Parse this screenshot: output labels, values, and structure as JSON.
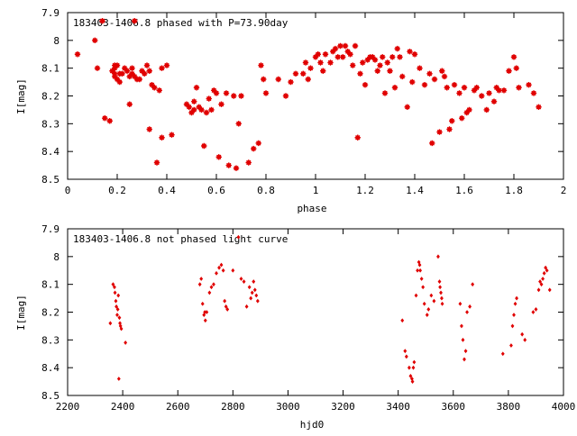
{
  "chart_data": [
    {
      "type": "scatter",
      "title": "183403-1406.8 phased with P=73.90day",
      "xlabel": "phase",
      "ylabel": "I[mag]",
      "xlim": [
        0,
        2
      ],
      "ylim": [
        7.9,
        8.5
      ],
      "y_inverted": true,
      "x_ticks": [
        0,
        0.2,
        0.4,
        0.6,
        0.8,
        1,
        1.2,
        1.4,
        1.6,
        1.8,
        2
      ],
      "x_tick_labels": [
        "0",
        "0.2",
        "0.4",
        "0.6",
        "0.8",
        "1",
        "1.2",
        "1.4",
        "1.6",
        "1.8",
        "2"
      ],
      "y_ticks": [
        7.9,
        8.0,
        8.1,
        8.2,
        8.3,
        8.4,
        8.5
      ],
      "y_tick_labels": [
        "7.9",
        "8",
        "8.1",
        "8.2",
        "8.3",
        "8.4",
        "8.5"
      ],
      "grid": false,
      "marker_color": "#e00000",
      "points": [
        [
          0.04,
          8.05
        ],
        [
          0.11,
          8.0
        ],
        [
          0.12,
          8.1
        ],
        [
          0.14,
          7.93
        ],
        [
          0.15,
          8.28
        ],
        [
          0.17,
          8.29
        ],
        [
          0.18,
          8.11
        ],
        [
          0.19,
          8.09
        ],
        [
          0.19,
          8.1
        ],
        [
          0.19,
          8.12
        ],
        [
          0.19,
          8.13
        ],
        [
          0.2,
          8.14
        ],
        [
          0.2,
          8.09
        ],
        [
          0.21,
          8.12
        ],
        [
          0.21,
          8.15
        ],
        [
          0.22,
          8.12
        ],
        [
          0.23,
          8.1
        ],
        [
          0.24,
          8.11
        ],
        [
          0.25,
          8.13
        ],
        [
          0.25,
          8.23
        ],
        [
          0.26,
          8.1
        ],
        [
          0.26,
          8.12
        ],
        [
          0.27,
          7.93
        ],
        [
          0.27,
          8.13
        ],
        [
          0.28,
          8.14
        ],
        [
          0.29,
          8.14
        ],
        [
          0.3,
          8.11
        ],
        [
          0.31,
          8.12
        ],
        [
          0.32,
          8.09
        ],
        [
          0.33,
          8.11
        ],
        [
          0.33,
          8.32
        ],
        [
          0.34,
          8.16
        ],
        [
          0.35,
          8.17
        ],
        [
          0.36,
          8.44
        ],
        [
          0.37,
          8.18
        ],
        [
          0.38,
          8.35
        ],
        [
          0.38,
          8.1
        ],
        [
          0.4,
          8.09
        ],
        [
          0.42,
          8.34
        ],
        [
          0.48,
          8.23
        ],
        [
          0.49,
          8.24
        ],
        [
          0.5,
          8.26
        ],
        [
          0.51,
          8.22
        ],
        [
          0.51,
          8.25
        ],
        [
          0.52,
          8.17
        ],
        [
          0.53,
          8.24
        ],
        [
          0.54,
          8.25
        ],
        [
          0.55,
          8.38
        ],
        [
          0.56,
          8.26
        ],
        [
          0.57,
          8.21
        ],
        [
          0.58,
          8.25
        ],
        [
          0.59,
          8.18
        ],
        [
          0.6,
          8.19
        ],
        [
          0.61,
          8.42
        ],
        [
          0.62,
          8.23
        ],
        [
          0.64,
          8.19
        ],
        [
          0.65,
          8.45
        ],
        [
          0.67,
          8.2
        ],
        [
          0.68,
          8.46
        ],
        [
          0.69,
          8.3
        ],
        [
          0.7,
          8.2
        ],
        [
          0.73,
          8.44
        ],
        [
          0.75,
          8.39
        ],
        [
          0.77,
          8.37
        ],
        [
          0.78,
          8.09
        ],
        [
          0.79,
          8.14
        ],
        [
          0.8,
          8.19
        ],
        [
          0.85,
          8.14
        ],
        [
          0.88,
          8.2
        ],
        [
          0.9,
          8.15
        ],
        [
          0.92,
          8.12
        ],
        [
          0.95,
          8.12
        ],
        [
          0.96,
          8.08
        ],
        [
          0.97,
          8.14
        ],
        [
          0.98,
          8.1
        ],
        [
          1.0,
          8.06
        ],
        [
          1.01,
          8.05
        ],
        [
          1.02,
          8.08
        ],
        [
          1.03,
          8.11
        ],
        [
          1.04,
          8.05
        ],
        [
          1.06,
          8.08
        ],
        [
          1.07,
          8.04
        ],
        [
          1.08,
          8.03
        ],
        [
          1.09,
          8.06
        ],
        [
          1.1,
          8.02
        ],
        [
          1.11,
          8.06
        ],
        [
          1.12,
          8.02
        ],
        [
          1.13,
          8.04
        ],
        [
          1.14,
          8.05
        ],
        [
          1.15,
          8.09
        ],
        [
          1.16,
          8.02
        ],
        [
          1.17,
          8.35
        ],
        [
          1.18,
          8.12
        ],
        [
          1.19,
          8.08
        ],
        [
          1.2,
          8.16
        ],
        [
          1.21,
          8.07
        ],
        [
          1.22,
          8.06
        ],
        [
          1.23,
          8.06
        ],
        [
          1.24,
          8.07
        ],
        [
          1.25,
          8.11
        ],
        [
          1.26,
          8.09
        ],
        [
          1.27,
          8.06
        ],
        [
          1.28,
          8.19
        ],
        [
          1.29,
          8.08
        ],
        [
          1.3,
          8.11
        ],
        [
          1.31,
          8.06
        ],
        [
          1.32,
          8.17
        ],
        [
          1.33,
          8.03
        ],
        [
          1.34,
          8.06
        ],
        [
          1.35,
          8.13
        ],
        [
          1.37,
          8.24
        ],
        [
          1.38,
          8.04
        ],
        [
          1.39,
          8.15
        ],
        [
          1.4,
          8.05
        ],
        [
          1.42,
          8.1
        ],
        [
          1.44,
          8.16
        ],
        [
          1.46,
          8.12
        ],
        [
          1.47,
          8.37
        ],
        [
          1.48,
          8.14
        ],
        [
          1.5,
          8.33
        ],
        [
          1.51,
          8.11
        ],
        [
          1.52,
          8.13
        ],
        [
          1.53,
          8.17
        ],
        [
          1.54,
          8.32
        ],
        [
          1.55,
          8.29
        ],
        [
          1.56,
          8.16
        ],
        [
          1.58,
          8.19
        ],
        [
          1.59,
          8.28
        ],
        [
          1.6,
          8.17
        ],
        [
          1.61,
          8.26
        ],
        [
          1.62,
          8.25
        ],
        [
          1.64,
          8.18
        ],
        [
          1.65,
          8.17
        ],
        [
          1.67,
          8.2
        ],
        [
          1.69,
          8.25
        ],
        [
          1.7,
          8.19
        ],
        [
          1.72,
          8.22
        ],
        [
          1.73,
          8.17
        ],
        [
          1.74,
          8.18
        ],
        [
          1.76,
          8.18
        ],
        [
          1.78,
          8.11
        ],
        [
          1.8,
          8.06
        ],
        [
          1.81,
          8.1
        ],
        [
          1.82,
          8.17
        ],
        [
          1.86,
          8.16
        ],
        [
          1.88,
          8.19
        ],
        [
          1.9,
          8.24
        ]
      ]
    },
    {
      "type": "scatter",
      "title": "183403-1406.8 not phased light curve",
      "xlabel": "hjd0",
      "ylabel": "I[mag]",
      "xlim": [
        2200,
        4000
      ],
      "ylim": [
        7.9,
        8.5
      ],
      "y_inverted": true,
      "x_ticks": [
        2200,
        2400,
        2600,
        2800,
        3000,
        3200,
        3400,
        3600,
        3800,
        4000
      ],
      "x_tick_labels": [
        "2200",
        "2400",
        "2600",
        "2800",
        "3000",
        "3200",
        "3400",
        "3600",
        "3800",
        "4000"
      ],
      "y_ticks": [
        7.9,
        8.0,
        8.1,
        8.2,
        8.3,
        8.4,
        8.5
      ],
      "y_tick_labels": [
        "7.9",
        "8",
        "8.1",
        "8.2",
        "8.3",
        "8.4",
        "8.5"
      ],
      "grid": false,
      "marker_color": "#e00000",
      "points": [
        [
          2355,
          8.24
        ],
        [
          2365,
          8.1
        ],
        [
          2370,
          8.11
        ],
        [
          2372,
          8.13
        ],
        [
          2375,
          8.16
        ],
        [
          2377,
          8.18
        ],
        [
          2380,
          8.21
        ],
        [
          2382,
          8.19
        ],
        [
          2384,
          8.14
        ],
        [
          2386,
          8.44
        ],
        [
          2388,
          8.22
        ],
        [
          2390,
          8.24
        ],
        [
          2392,
          8.25
        ],
        [
          2395,
          8.26
        ],
        [
          2410,
          8.31
        ],
        [
          2680,
          8.1
        ],
        [
          2685,
          8.08
        ],
        [
          2690,
          8.17
        ],
        [
          2695,
          8.21
        ],
        [
          2698,
          8.2
        ],
        [
          2700,
          8.23
        ],
        [
          2705,
          8.2
        ],
        [
          2715,
          8.13
        ],
        [
          2722,
          8.11
        ],
        [
          2730,
          8.1
        ],
        [
          2740,
          8.06
        ],
        [
          2750,
          8.04
        ],
        [
          2758,
          8.03
        ],
        [
          2765,
          8.05
        ],
        [
          2770,
          8.16
        ],
        [
          2775,
          8.18
        ],
        [
          2780,
          8.19
        ],
        [
          2800,
          8.05
        ],
        [
          2820,
          7.93
        ],
        [
          2830,
          8.08
        ],
        [
          2840,
          8.09
        ],
        [
          2850,
          8.18
        ],
        [
          2860,
          8.11
        ],
        [
          2865,
          8.15
        ],
        [
          2870,
          8.13
        ],
        [
          2875,
          8.09
        ],
        [
          2880,
          8.12
        ],
        [
          2885,
          8.14
        ],
        [
          2890,
          8.16
        ],
        [
          3415,
          8.23
        ],
        [
          3425,
          8.34
        ],
        [
          3430,
          8.36
        ],
        [
          3440,
          8.4
        ],
        [
          3445,
          8.43
        ],
        [
          3450,
          8.44
        ],
        [
          3452,
          8.45
        ],
        [
          3455,
          8.4
        ],
        [
          3458,
          8.38
        ],
        [
          3465,
          8.14
        ],
        [
          3470,
          8.05
        ],
        [
          3475,
          8.02
        ],
        [
          3478,
          8.03
        ],
        [
          3480,
          8.05
        ],
        [
          3485,
          8.08
        ],
        [
          3490,
          8.11
        ],
        [
          3495,
          8.17
        ],
        [
          3505,
          8.21
        ],
        [
          3510,
          8.19
        ],
        [
          3520,
          8.14
        ],
        [
          3530,
          8.16
        ],
        [
          3545,
          8.0
        ],
        [
          3550,
          8.09
        ],
        [
          3552,
          8.11
        ],
        [
          3555,
          8.13
        ],
        [
          3558,
          8.15
        ],
        [
          3560,
          8.17
        ],
        [
          3625,
          8.17
        ],
        [
          3630,
          8.25
        ],
        [
          3635,
          8.3
        ],
        [
          3640,
          8.37
        ],
        [
          3645,
          8.34
        ],
        [
          3650,
          8.2
        ],
        [
          3660,
          8.18
        ],
        [
          3670,
          8.1
        ],
        [
          3780,
          8.35
        ],
        [
          3810,
          8.32
        ],
        [
          3815,
          8.25
        ],
        [
          3820,
          8.21
        ],
        [
          3825,
          8.17
        ],
        [
          3830,
          8.15
        ],
        [
          3850,
          8.28
        ],
        [
          3860,
          8.3
        ],
        [
          3890,
          8.2
        ],
        [
          3900,
          8.19
        ],
        [
          3910,
          8.12
        ],
        [
          3915,
          8.09
        ],
        [
          3920,
          8.1
        ],
        [
          3925,
          8.08
        ],
        [
          3930,
          8.06
        ],
        [
          3935,
          8.04
        ],
        [
          3940,
          8.05
        ],
        [
          3950,
          8.12
        ]
      ]
    }
  ]
}
